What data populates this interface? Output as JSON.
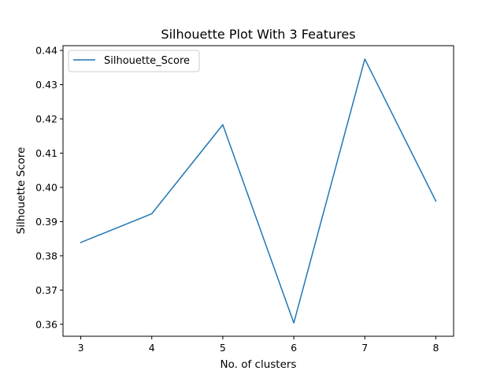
{
  "chart_data": {
    "type": "line",
    "title": "Silhouette Plot With 3 Features",
    "xlabel": "No. of clusters",
    "ylabel": "Silhouette Score",
    "x": [
      3,
      4,
      5,
      6,
      7,
      8
    ],
    "series": [
      {
        "name": "Silhouette_Score",
        "values": [
          0.3839,
          0.3923,
          0.4183,
          0.3604,
          0.4375,
          0.396
        ],
        "color": "#1f77b4"
      }
    ],
    "xlim": [
      2.75,
      8.25
    ],
    "ylim": [
      0.3565,
      0.4414
    ],
    "xticks": [
      3,
      4,
      5,
      6,
      7,
      8
    ],
    "yticks": [
      "0.36",
      "0.37",
      "0.38",
      "0.39",
      "0.40",
      "0.41",
      "0.42",
      "0.43",
      "0.44"
    ],
    "grid": false,
    "legend_position": "top-left"
  }
}
